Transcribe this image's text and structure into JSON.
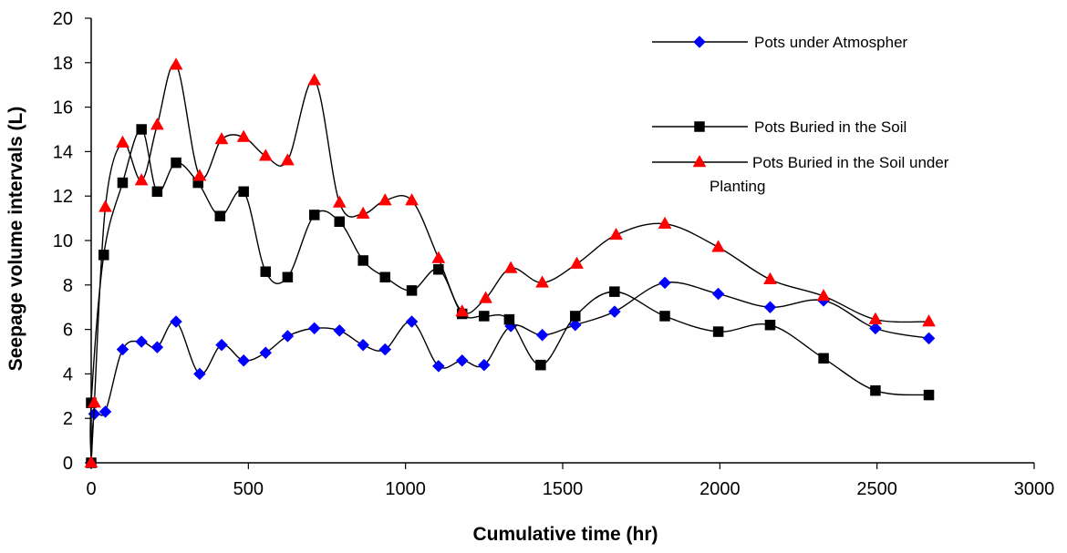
{
  "chart_data": {
    "type": "line",
    "xlabel": "Cumulative time (hr)",
    "ylabel": "Seepage volume intervals (L)",
    "xlim": [
      0,
      3000
    ],
    "ylim": [
      0,
      20
    ],
    "xticks": [
      "0",
      "500",
      "1000",
      "1500",
      "2000",
      "2500",
      "3000"
    ],
    "yticks": [
      "0",
      "2",
      "4",
      "6",
      "8",
      "10",
      "12",
      "14",
      "16",
      "18",
      "20"
    ],
    "grid": false,
    "legend_position": "top-right",
    "series": [
      {
        "name": "Pots under Atmospher",
        "color": "#0000ff",
        "marker": "diamond",
        "points": [
          [
            0,
            0
          ],
          [
            10,
            2.2
          ],
          [
            45,
            2.3
          ],
          [
            100,
            5.1
          ],
          [
            160,
            5.45
          ],
          [
            210,
            5.2
          ],
          [
            270,
            6.35
          ],
          [
            345,
            4.0
          ],
          [
            415,
            5.3
          ],
          [
            485,
            4.6
          ],
          [
            555,
            4.95
          ],
          [
            625,
            5.7
          ],
          [
            710,
            6.05
          ],
          [
            790,
            5.95
          ],
          [
            865,
            5.3
          ],
          [
            935,
            5.1
          ],
          [
            1020,
            6.35
          ],
          [
            1105,
            4.35
          ],
          [
            1180,
            4.6
          ],
          [
            1250,
            4.4
          ],
          [
            1335,
            6.15
          ],
          [
            1435,
            5.75
          ],
          [
            1540,
            6.2
          ],
          [
            1665,
            6.8
          ],
          [
            1825,
            8.1
          ],
          [
            1995,
            7.6
          ],
          [
            2160,
            7.0
          ],
          [
            2330,
            7.3
          ],
          [
            2495,
            6.05
          ],
          [
            2665,
            5.6
          ]
        ]
      },
      {
        "name": "Pots Buried in the Soil",
        "color": "#000000",
        "marker": "square",
        "points": [
          [
            0,
            0
          ],
          [
            0,
            2.7
          ],
          [
            40,
            9.35
          ],
          [
            100,
            12.6
          ],
          [
            160,
            15.0
          ],
          [
            210,
            12.2
          ],
          [
            270,
            13.5
          ],
          [
            340,
            12.6
          ],
          [
            410,
            11.1
          ],
          [
            485,
            12.2
          ],
          [
            555,
            8.6
          ],
          [
            625,
            8.35
          ],
          [
            710,
            11.15
          ],
          [
            790,
            10.85
          ],
          [
            865,
            9.1
          ],
          [
            935,
            8.35
          ],
          [
            1020,
            7.75
          ],
          [
            1105,
            8.7
          ],
          [
            1180,
            6.7
          ],
          [
            1250,
            6.6
          ],
          [
            1330,
            6.45
          ],
          [
            1430,
            4.4
          ],
          [
            1540,
            6.6
          ],
          [
            1665,
            7.7
          ],
          [
            1825,
            6.6
          ],
          [
            1995,
            5.9
          ],
          [
            2160,
            6.2
          ],
          [
            2330,
            4.7
          ],
          [
            2495,
            3.25
          ],
          [
            2665,
            3.05
          ]
        ]
      },
      {
        "name": "Pots Buried in the Soil under Planting",
        "name_line1": "Pots Buried in the Soil under",
        "name_line2": "Planting",
        "color": "#ff0000",
        "marker": "triangle",
        "points": [
          [
            0,
            0
          ],
          [
            10,
            2.7
          ],
          [
            45,
            11.5
          ],
          [
            100,
            14.4
          ],
          [
            160,
            12.7
          ],
          [
            210,
            15.2
          ],
          [
            270,
            17.9
          ],
          [
            345,
            12.9
          ],
          [
            415,
            14.55
          ],
          [
            485,
            14.65
          ],
          [
            555,
            13.8
          ],
          [
            625,
            13.6
          ],
          [
            710,
            17.2
          ],
          [
            790,
            11.7
          ],
          [
            865,
            11.2
          ],
          [
            935,
            11.8
          ],
          [
            1020,
            11.8
          ],
          [
            1105,
            9.2
          ],
          [
            1180,
            6.8
          ],
          [
            1255,
            7.4
          ],
          [
            1335,
            8.75
          ],
          [
            1435,
            8.1
          ],
          [
            1545,
            8.95
          ],
          [
            1670,
            10.25
          ],
          [
            1825,
            10.75
          ],
          [
            1995,
            9.7
          ],
          [
            2160,
            8.25
          ],
          [
            2330,
            7.5
          ],
          [
            2495,
            6.45
          ],
          [
            2665,
            6.35
          ]
        ]
      }
    ]
  }
}
